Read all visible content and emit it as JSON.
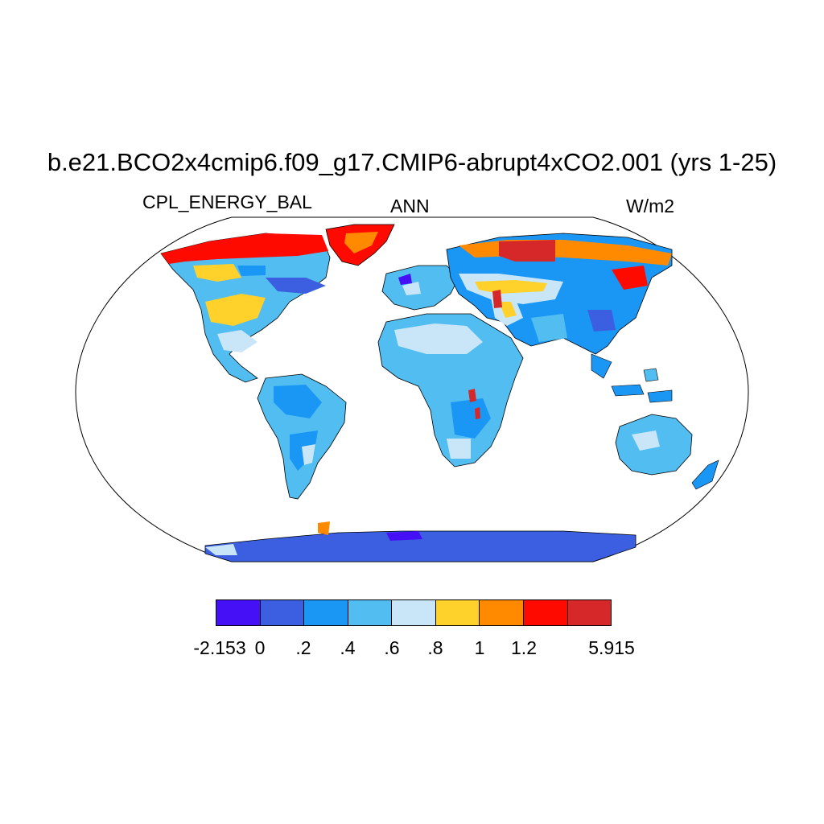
{
  "title": "b.e21.BCO2x4cmip6.f09_g17.CMIP6-abrupt4xCO2.001 (yrs 1-25)",
  "left_label": "CPL_ENERGY_BAL",
  "center_label": "ANN",
  "right_label": "W/m2",
  "map": {
    "projection": "robinson",
    "background": "#ffffff",
    "ocean_color": "#ffffff",
    "coastline_color": "#000000"
  },
  "colorbar": {
    "colors": [
      "#4510f5",
      "#3b5fe0",
      "#1a96f5",
      "#52bdf0",
      "#c8e6f8",
      "#ffd12a",
      "#ff8a00",
      "#ff0a00",
      "#d62828"
    ],
    "labels": [
      "-2.153",
      "0",
      ".2",
      ".4",
      ".6",
      ".8",
      "1",
      "1.2",
      "5.915"
    ]
  }
}
